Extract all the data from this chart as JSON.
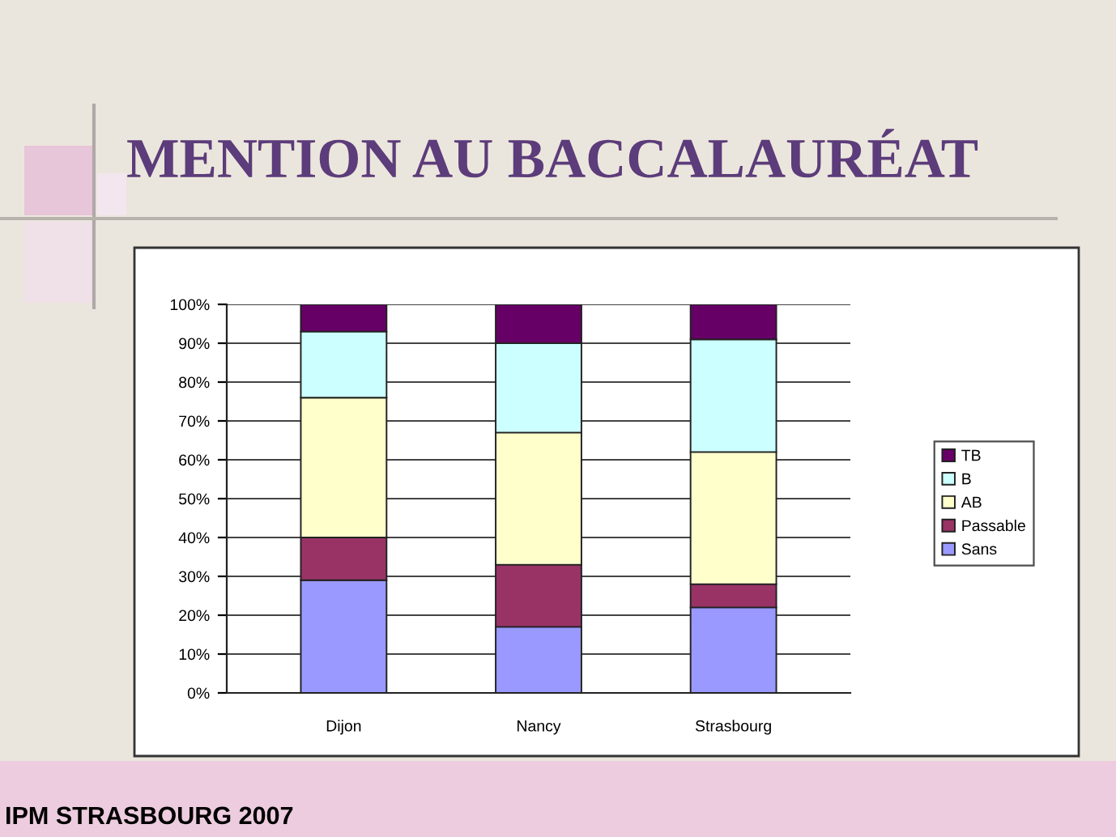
{
  "chart_data": {
    "type": "bar",
    "stacked": true,
    "title": "MENTION AU BACCALAURÉAT",
    "categories": [
      "Dijon",
      "Nancy",
      "Strasbourg"
    ],
    "series": [
      {
        "name": "Sans",
        "color": "#9999ff",
        "values": [
          29,
          17,
          22
        ]
      },
      {
        "name": "Passable",
        "color": "#993366",
        "values": [
          11,
          16,
          6
        ]
      },
      {
        "name": "AB",
        "color": "#ffffcc",
        "values": [
          36,
          34,
          34
        ]
      },
      {
        "name": "B",
        "color": "#ccffff",
        "values": [
          17,
          23,
          29
        ]
      },
      {
        "name": "TB",
        "color": "#660066",
        "values": [
          7,
          10,
          9
        ]
      }
    ],
    "ylim": [
      0,
      100
    ],
    "yticks": [
      {
        "value": 0,
        "label": "0%"
      },
      {
        "value": 10,
        "label": "10%"
      },
      {
        "value": 20,
        "label": "20%"
      },
      {
        "value": 30,
        "label": "30%"
      },
      {
        "value": 40,
        "label": "40%"
      },
      {
        "value": 50,
        "label": "50%"
      },
      {
        "value": 60,
        "label": "60%"
      },
      {
        "value": 70,
        "label": "70%"
      },
      {
        "value": 80,
        "label": "80%"
      },
      {
        "value": 90,
        "label": "90%"
      },
      {
        "value": 100,
        "label": "100%"
      }
    ],
    "grid": "y",
    "legend": "right",
    "annotations": [
      "IPM STRASBOURG 2007"
    ]
  }
}
